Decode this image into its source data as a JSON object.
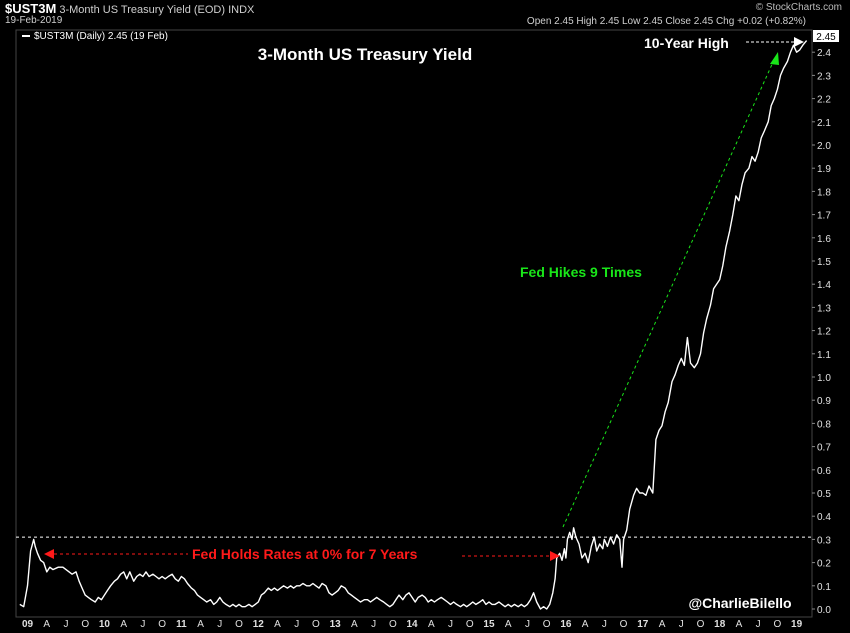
{
  "header": {
    "symbol": "$UST3M",
    "description": "3-Month US Treasury Yield (EOD)",
    "exchange": "INDX",
    "date": "19-Feb-2019",
    "ohlc": "Open 2.45  High 2.45  Low 2.45  Close 2.45  Chg +0.02 (+0.82%)",
    "brand": "© StockCharts.com"
  },
  "legend": "$UST3M (Daily) 2.45 (19 Feb)",
  "last_value_tag": "2.45",
  "colors": {
    "background": "#000000",
    "line": "#ffffff",
    "red": "#ff1a1a",
    "green": "#19e619"
  },
  "chart_data": {
    "type": "line",
    "title": "3-Month US Treasury Yield",
    "ylim": [
      0,
      2.5
    ],
    "y_ticks": [
      "0.0",
      "0.1",
      "0.2",
      "0.3",
      "0.4",
      "0.5",
      "0.6",
      "0.7",
      "0.8",
      "0.9",
      "1.0",
      "1.1",
      "1.2",
      "1.3",
      "1.4",
      "1.5",
      "1.6",
      "1.7",
      "1.8",
      "1.9",
      "2.0",
      "2.1",
      "2.2",
      "2.3",
      "2.4"
    ],
    "x_ticks": [
      {
        "label": "09",
        "t": 2009.0,
        "bold": true
      },
      {
        "label": "A",
        "t": 2009.25
      },
      {
        "label": "J",
        "t": 2009.5
      },
      {
        "label": "O",
        "t": 2009.75
      },
      {
        "label": "10",
        "t": 2010.0,
        "bold": true
      },
      {
        "label": "A",
        "t": 2010.25
      },
      {
        "label": "J",
        "t": 2010.5
      },
      {
        "label": "O",
        "t": 2010.75
      },
      {
        "label": "11",
        "t": 2011.0,
        "bold": true
      },
      {
        "label": "A",
        "t": 2011.25
      },
      {
        "label": "J",
        "t": 2011.5
      },
      {
        "label": "O",
        "t": 2011.75
      },
      {
        "label": "12",
        "t": 2012.0,
        "bold": true
      },
      {
        "label": "A",
        "t": 2012.25
      },
      {
        "label": "J",
        "t": 2012.5
      },
      {
        "label": "O",
        "t": 2012.75
      },
      {
        "label": "13",
        "t": 2013.0,
        "bold": true
      },
      {
        "label": "A",
        "t": 2013.25
      },
      {
        "label": "J",
        "t": 2013.5
      },
      {
        "label": "O",
        "t": 2013.75
      },
      {
        "label": "14",
        "t": 2014.0,
        "bold": true
      },
      {
        "label": "A",
        "t": 2014.25
      },
      {
        "label": "J",
        "t": 2014.5
      },
      {
        "label": "O",
        "t": 2014.75
      },
      {
        "label": "15",
        "t": 2015.0,
        "bold": true
      },
      {
        "label": "A",
        "t": 2015.25
      },
      {
        "label": "J",
        "t": 2015.5
      },
      {
        "label": "O",
        "t": 2015.75
      },
      {
        "label": "16",
        "t": 2016.0,
        "bold": true
      },
      {
        "label": "A",
        "t": 2016.25
      },
      {
        "label": "J",
        "t": 2016.5
      },
      {
        "label": "O",
        "t": 2016.75
      },
      {
        "label": "17",
        "t": 2017.0,
        "bold": true
      },
      {
        "label": "A",
        "t": 2017.25
      },
      {
        "label": "J",
        "t": 2017.5
      },
      {
        "label": "O",
        "t": 2017.75
      },
      {
        "label": "18",
        "t": 2018.0,
        "bold": true
      },
      {
        "label": "A",
        "t": 2018.25
      },
      {
        "label": "J",
        "t": 2018.5
      },
      {
        "label": "O",
        "t": 2018.75
      },
      {
        "label": "19",
        "t": 2019.0,
        "bold": true
      }
    ],
    "series": [
      {
        "values": [
          [
            2008.9,
            0.02
          ],
          [
            2008.95,
            0.01
          ],
          [
            2009.0,
            0.1
          ],
          [
            2009.04,
            0.25
          ],
          [
            2009.08,
            0.3
          ],
          [
            2009.1,
            0.27
          ],
          [
            2009.13,
            0.24
          ],
          [
            2009.17,
            0.21
          ],
          [
            2009.21,
            0.2
          ],
          [
            2009.25,
            0.16
          ],
          [
            2009.29,
            0.18
          ],
          [
            2009.33,
            0.17
          ],
          [
            2009.4,
            0.18
          ],
          [
            2009.46,
            0.18
          ],
          [
            2009.5,
            0.17
          ],
          [
            2009.58,
            0.15
          ],
          [
            2009.63,
            0.16
          ],
          [
            2009.67,
            0.12
          ],
          [
            2009.71,
            0.09
          ],
          [
            2009.75,
            0.06
          ],
          [
            2009.79,
            0.05
          ],
          [
            2009.83,
            0.04
          ],
          [
            2009.88,
            0.03
          ],
          [
            2009.92,
            0.05
          ],
          [
            2009.96,
            0.04
          ],
          [
            2010.0,
            0.06
          ],
          [
            2010.04,
            0.08
          ],
          [
            2010.08,
            0.1
          ],
          [
            2010.13,
            0.12
          ],
          [
            2010.17,
            0.13
          ],
          [
            2010.21,
            0.15
          ],
          [
            2010.25,
            0.16
          ],
          [
            2010.29,
            0.13
          ],
          [
            2010.33,
            0.16
          ],
          [
            2010.38,
            0.12
          ],
          [
            2010.42,
            0.14
          ],
          [
            2010.46,
            0.15
          ],
          [
            2010.5,
            0.14
          ],
          [
            2010.54,
            0.16
          ],
          [
            2010.58,
            0.14
          ],
          [
            2010.63,
            0.15
          ],
          [
            2010.67,
            0.14
          ],
          [
            2010.71,
            0.13
          ],
          [
            2010.75,
            0.14
          ],
          [
            2010.79,
            0.13
          ],
          [
            2010.83,
            0.14
          ],
          [
            2010.88,
            0.15
          ],
          [
            2010.92,
            0.13
          ],
          [
            2010.96,
            0.12
          ],
          [
            2011.0,
            0.14
          ],
          [
            2011.04,
            0.13
          ],
          [
            2011.08,
            0.11
          ],
          [
            2011.13,
            0.09
          ],
          [
            2011.17,
            0.08
          ],
          [
            2011.21,
            0.06
          ],
          [
            2011.25,
            0.05
          ],
          [
            2011.29,
            0.04
          ],
          [
            2011.33,
            0.03
          ],
          [
            2011.38,
            0.04
          ],
          [
            2011.42,
            0.02
          ],
          [
            2011.46,
            0.03
          ],
          [
            2011.5,
            0.05
          ],
          [
            2011.54,
            0.03
          ],
          [
            2011.58,
            0.02
          ],
          [
            2011.63,
            0.01
          ],
          [
            2011.67,
            0.02
          ],
          [
            2011.71,
            0.01
          ],
          [
            2011.75,
            0.02
          ],
          [
            2011.79,
            0.01
          ],
          [
            2011.83,
            0.01
          ],
          [
            2011.88,
            0.02
          ],
          [
            2011.92,
            0.01
          ],
          [
            2011.96,
            0.02
          ],
          [
            2012.0,
            0.03
          ],
          [
            2012.04,
            0.06
          ],
          [
            2012.08,
            0.07
          ],
          [
            2012.13,
            0.09
          ],
          [
            2012.17,
            0.08
          ],
          [
            2012.21,
            0.09
          ],
          [
            2012.25,
            0.08
          ],
          [
            2012.29,
            0.09
          ],
          [
            2012.33,
            0.1
          ],
          [
            2012.38,
            0.09
          ],
          [
            2012.42,
            0.1
          ],
          [
            2012.46,
            0.09
          ],
          [
            2012.5,
            0.1
          ],
          [
            2012.54,
            0.1
          ],
          [
            2012.58,
            0.11
          ],
          [
            2012.63,
            0.1
          ],
          [
            2012.67,
            0.1
          ],
          [
            2012.71,
            0.11
          ],
          [
            2012.75,
            0.1
          ],
          [
            2012.79,
            0.09
          ],
          [
            2012.83,
            0.11
          ],
          [
            2012.88,
            0.1
          ],
          [
            2012.92,
            0.07
          ],
          [
            2012.96,
            0.06
          ],
          [
            2013.0,
            0.07
          ],
          [
            2013.04,
            0.08
          ],
          [
            2013.08,
            0.1
          ],
          [
            2013.13,
            0.09
          ],
          [
            2013.17,
            0.07
          ],
          [
            2013.21,
            0.06
          ],
          [
            2013.25,
            0.05
          ],
          [
            2013.29,
            0.04
          ],
          [
            2013.33,
            0.03
          ],
          [
            2013.38,
            0.04
          ],
          [
            2013.42,
            0.04
          ],
          [
            2013.46,
            0.03
          ],
          [
            2013.5,
            0.04
          ],
          [
            2013.54,
            0.05
          ],
          [
            2013.58,
            0.04
          ],
          [
            2013.63,
            0.03
          ],
          [
            2013.67,
            0.02
          ],
          [
            2013.71,
            0.01
          ],
          [
            2013.75,
            0.02
          ],
          [
            2013.79,
            0.04
          ],
          [
            2013.83,
            0.06
          ],
          [
            2013.88,
            0.04
          ],
          [
            2013.92,
            0.06
          ],
          [
            2013.96,
            0.07
          ],
          [
            2014.0,
            0.05
          ],
          [
            2014.04,
            0.03
          ],
          [
            2014.08,
            0.05
          ],
          [
            2014.13,
            0.06
          ],
          [
            2014.17,
            0.05
          ],
          [
            2014.21,
            0.03
          ],
          [
            2014.25,
            0.04
          ],
          [
            2014.29,
            0.03
          ],
          [
            2014.33,
            0.04
          ],
          [
            2014.38,
            0.05
          ],
          [
            2014.42,
            0.04
          ],
          [
            2014.46,
            0.03
          ],
          [
            2014.5,
            0.02
          ],
          [
            2014.54,
            0.03
          ],
          [
            2014.58,
            0.02
          ],
          [
            2014.63,
            0.01
          ],
          [
            2014.67,
            0.02
          ],
          [
            2014.71,
            0.01
          ],
          [
            2014.75,
            0.02
          ],
          [
            2014.79,
            0.03
          ],
          [
            2014.83,
            0.02
          ],
          [
            2014.88,
            0.03
          ],
          [
            2014.92,
            0.04
          ],
          [
            2014.96,
            0.02
          ],
          [
            2015.0,
            0.03
          ],
          [
            2015.04,
            0.02
          ],
          [
            2015.08,
            0.02
          ],
          [
            2015.13,
            0.03
          ],
          [
            2015.17,
            0.02
          ],
          [
            2015.21,
            0.01
          ],
          [
            2015.25,
            0.02
          ],
          [
            2015.29,
            0.01
          ],
          [
            2015.33,
            0.02
          ],
          [
            2015.38,
            0.01
          ],
          [
            2015.42,
            0.02
          ],
          [
            2015.46,
            0.01
          ],
          [
            2015.5,
            0.02
          ],
          [
            2015.54,
            0.04
          ],
          [
            2015.58,
            0.07
          ],
          [
            2015.62,
            0.03
          ],
          [
            2015.67,
            0.0
          ],
          [
            2015.71,
            0.01
          ],
          [
            2015.75,
            0.0
          ],
          [
            2015.79,
            0.02
          ],
          [
            2015.83,
            0.07
          ],
          [
            2015.86,
            0.13
          ],
          [
            2015.88,
            0.22
          ],
          [
            2015.92,
            0.24
          ],
          [
            2015.95,
            0.21
          ],
          [
            2015.98,
            0.26
          ],
          [
            2016.0,
            0.22
          ],
          [
            2016.02,
            0.3
          ],
          [
            2016.05,
            0.33
          ],
          [
            2016.08,
            0.3
          ],
          [
            2016.1,
            0.35
          ],
          [
            2016.13,
            0.31
          ],
          [
            2016.17,
            0.28
          ],
          [
            2016.21,
            0.22
          ],
          [
            2016.25,
            0.24
          ],
          [
            2016.29,
            0.2
          ],
          [
            2016.33,
            0.27
          ],
          [
            2016.37,
            0.31
          ],
          [
            2016.4,
            0.25
          ],
          [
            2016.44,
            0.28
          ],
          [
            2016.48,
            0.26
          ],
          [
            2016.5,
            0.3
          ],
          [
            2016.54,
            0.27
          ],
          [
            2016.58,
            0.31
          ],
          [
            2016.62,
            0.28
          ],
          [
            2016.66,
            0.32
          ],
          [
            2016.7,
            0.3
          ],
          [
            2016.73,
            0.18
          ],
          [
            2016.75,
            0.3
          ],
          [
            2016.79,
            0.34
          ],
          [
            2016.83,
            0.43
          ],
          [
            2016.88,
            0.49
          ],
          [
            2016.92,
            0.52
          ],
          [
            2016.96,
            0.5
          ],
          [
            2017.0,
            0.5
          ],
          [
            2017.04,
            0.49
          ],
          [
            2017.08,
            0.53
          ],
          [
            2017.13,
            0.5
          ],
          [
            2017.17,
            0.73
          ],
          [
            2017.21,
            0.77
          ],
          [
            2017.25,
            0.79
          ],
          [
            2017.29,
            0.85
          ],
          [
            2017.33,
            0.89
          ],
          [
            2017.38,
            0.98
          ],
          [
            2017.42,
            1.01
          ],
          [
            2017.46,
            1.05
          ],
          [
            2017.5,
            1.08
          ],
          [
            2017.54,
            1.05
          ],
          [
            2017.58,
            1.17
          ],
          [
            2017.62,
            1.06
          ],
          [
            2017.67,
            1.04
          ],
          [
            2017.71,
            1.06
          ],
          [
            2017.75,
            1.1
          ],
          [
            2017.79,
            1.19
          ],
          [
            2017.83,
            1.25
          ],
          [
            2017.88,
            1.31
          ],
          [
            2017.92,
            1.38
          ],
          [
            2017.96,
            1.4
          ],
          [
            2018.0,
            1.42
          ],
          [
            2018.04,
            1.48
          ],
          [
            2018.08,
            1.56
          ],
          [
            2018.13,
            1.63
          ],
          [
            2018.17,
            1.7
          ],
          [
            2018.21,
            1.78
          ],
          [
            2018.25,
            1.76
          ],
          [
            2018.29,
            1.83
          ],
          [
            2018.33,
            1.88
          ],
          [
            2018.38,
            1.9
          ],
          [
            2018.42,
            1.95
          ],
          [
            2018.46,
            1.93
          ],
          [
            2018.5,
            1.97
          ],
          [
            2018.54,
            2.03
          ],
          [
            2018.58,
            2.06
          ],
          [
            2018.63,
            2.1
          ],
          [
            2018.67,
            2.17
          ],
          [
            2018.71,
            2.2
          ],
          [
            2018.75,
            2.24
          ],
          [
            2018.79,
            2.3
          ],
          [
            2018.83,
            2.33
          ],
          [
            2018.88,
            2.36
          ],
          [
            2018.92,
            2.4
          ],
          [
            2018.96,
            2.43
          ],
          [
            2019.0,
            2.4
          ],
          [
            2019.04,
            2.41
          ],
          [
            2019.08,
            2.43
          ],
          [
            2019.13,
            2.45
          ]
        ]
      }
    ],
    "reference_line": {
      "y": 0.31
    },
    "annotations": {
      "fed_holds": "Fed Holds Rates at 0% for 7 Years",
      "fed_hikes": "Fed Hikes 9 Times",
      "high": "10-Year High",
      "credit": "@CharlieBilello"
    }
  }
}
